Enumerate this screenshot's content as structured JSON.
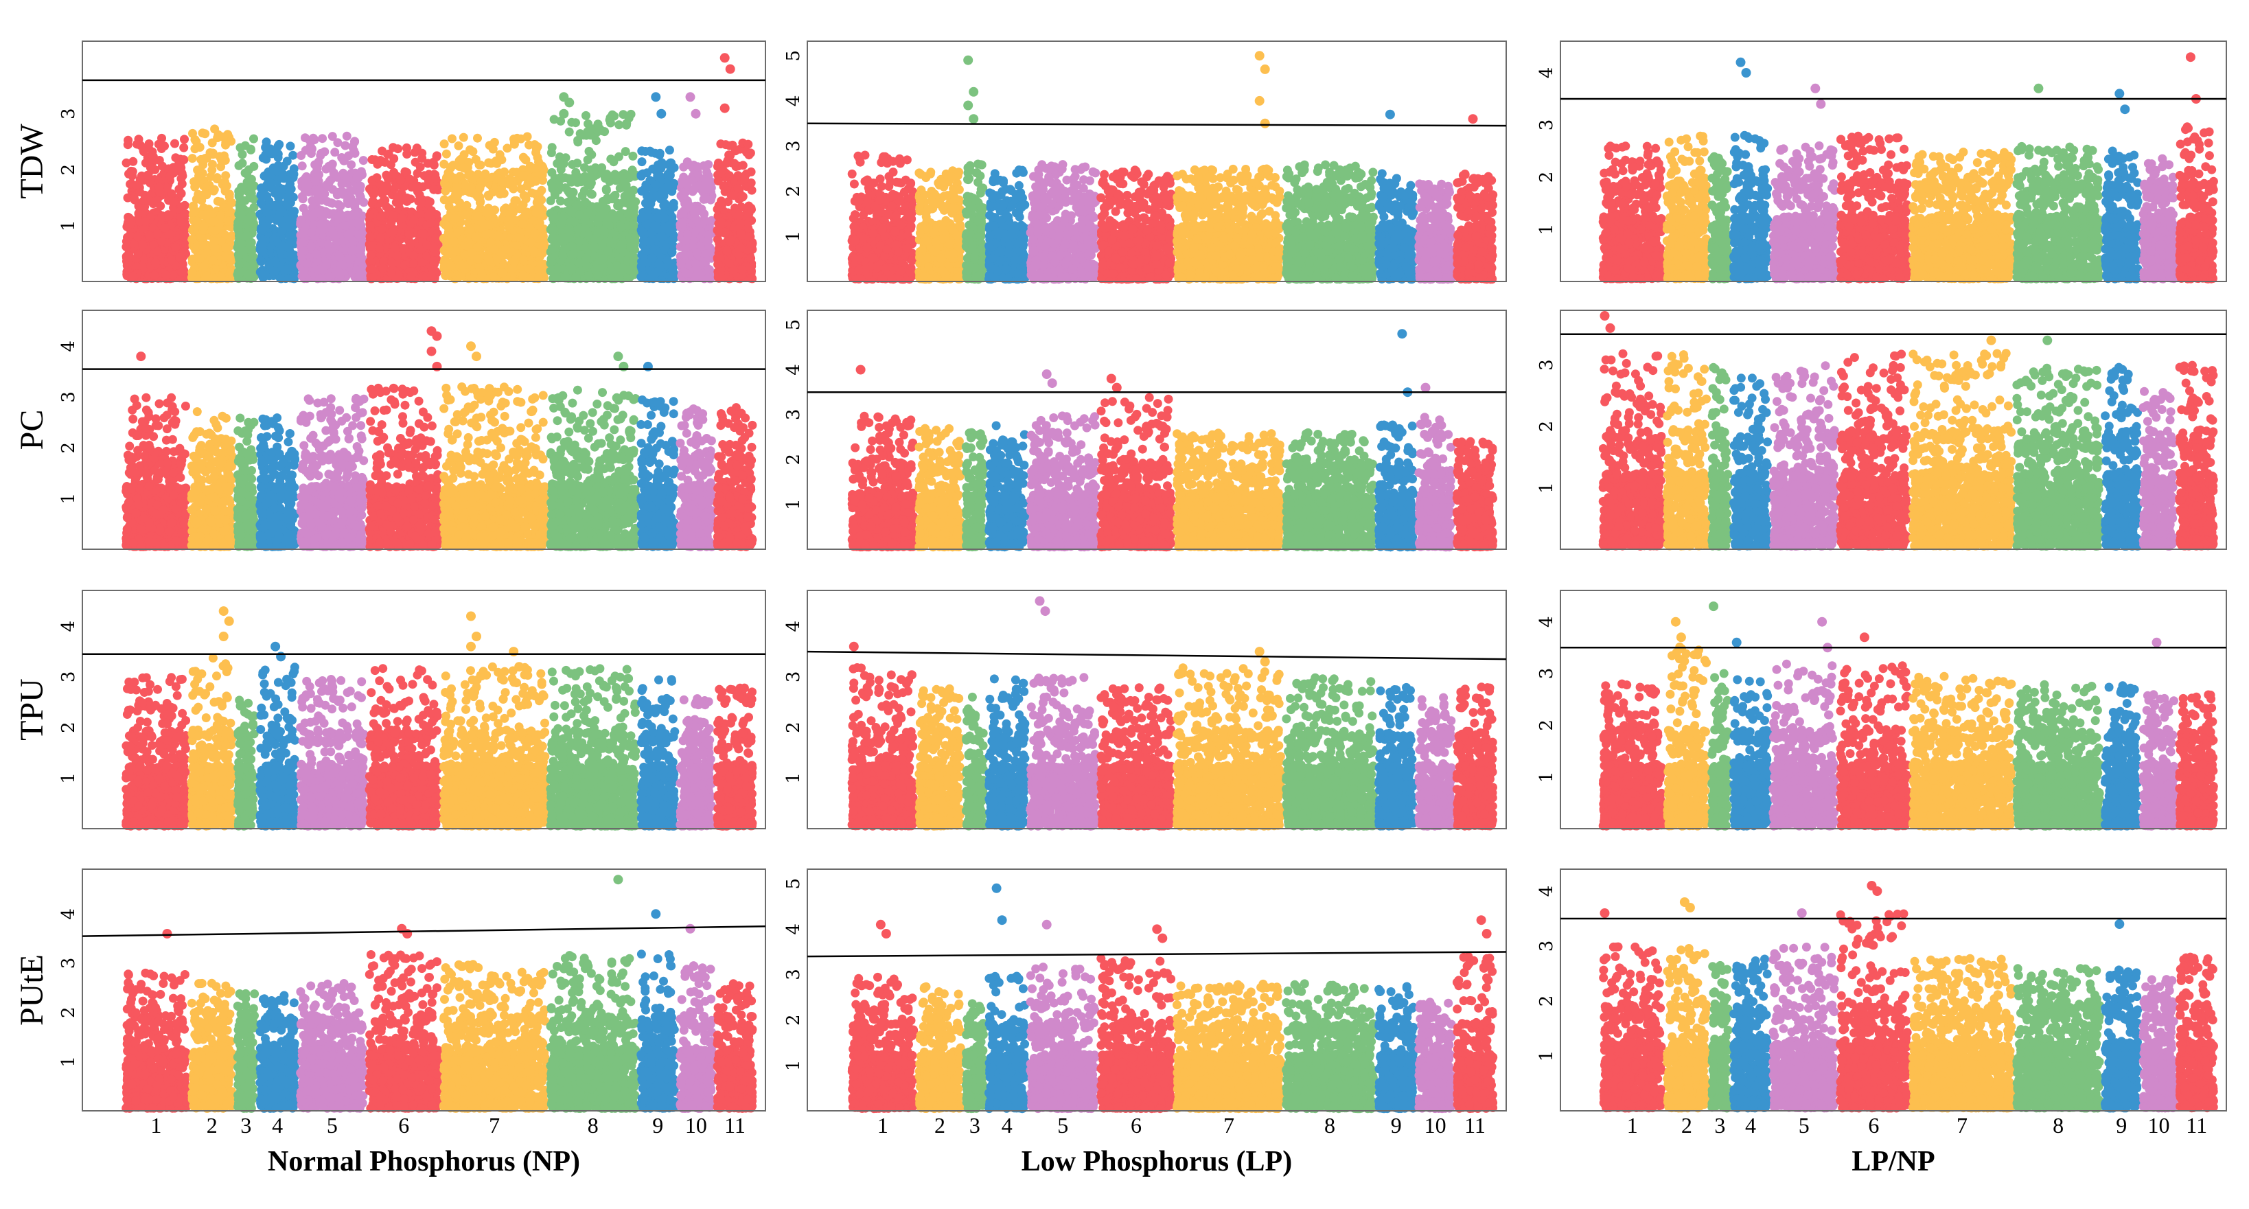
{
  "colors": {
    "chr": [
      "#f7575e",
      "#fdbf4f",
      "#7cc27f",
      "#3a94cf",
      "#d089cb",
      "#f7575e",
      "#fdbf4f",
      "#7cc27f",
      "#3a94cf",
      "#d089cb",
      "#f7575e"
    ]
  },
  "chart_data": [
    {
      "type": "scatter",
      "column": "NP",
      "trait": "TDW",
      "xlabel": "",
      "ylim": [
        0,
        4.2
      ],
      "yticks": [
        "1",
        "2",
        "3"
      ],
      "threshold": [
        3.6,
        3.6
      ],
      "chromosomes": [
        "1",
        "2",
        "3",
        "4",
        "5",
        "6",
        "7",
        "8",
        "9",
        "10",
        "11"
      ],
      "baseline_max": [
        2.6,
        2.8,
        2.6,
        2.5,
        2.6,
        2.4,
        2.6,
        3.0,
        2.4,
        2.2,
        2.5
      ],
      "peaks": [
        {
          "chr": 11,
          "pos": 0.3,
          "values": [
            4.0,
            3.8,
            3.1
          ]
        },
        {
          "chr": 8,
          "pos": 0.2,
          "values": [
            3.3,
            3.2,
            3.0
          ]
        },
        {
          "chr": 9,
          "pos": 0.5,
          "values": [
            3.3,
            3.0
          ]
        },
        {
          "chr": 10,
          "pos": 0.4,
          "values": [
            3.3,
            3.0
          ]
        }
      ]
    },
    {
      "type": "scatter",
      "column": "LP",
      "trait": "",
      "xlabel": "",
      "ylim": [
        0,
        5.2
      ],
      "yticks": [
        "1",
        "2",
        "3",
        "4",
        "5"
      ],
      "threshold": [
        3.5,
        3.45
      ],
      "chromosomes": [
        "1",
        "2",
        "3",
        "4",
        "5",
        "6",
        "7",
        "8",
        "9",
        "10",
        "11"
      ],
      "baseline_max": [
        2.8,
        2.5,
        2.6,
        2.5,
        2.6,
        2.5,
        2.5,
        2.6,
        2.4,
        2.2,
        2.4
      ],
      "peaks": [
        {
          "chr": 3,
          "pos": 0.3,
          "values": [
            4.9,
            4.2,
            3.9,
            3.6
          ]
        },
        {
          "chr": 7,
          "pos": 0.8,
          "values": [
            5.0,
            4.7,
            4.0,
            3.5
          ]
        },
        {
          "chr": 9,
          "pos": 0.4,
          "values": [
            3.7
          ]
        },
        {
          "chr": 11,
          "pos": 0.5,
          "values": [
            3.6
          ]
        }
      ]
    },
    {
      "type": "scatter",
      "column": "LP/NP",
      "trait": "",
      "xlabel": "",
      "ylim": [
        0,
        4.5
      ],
      "yticks": [
        "1",
        "2",
        "3",
        "4"
      ],
      "threshold": [
        3.5,
        3.5
      ],
      "chromosomes": [
        "1",
        "2",
        "3",
        "4",
        "5",
        "6",
        "7",
        "8",
        "9",
        "10",
        "11"
      ],
      "baseline_max": [
        2.6,
        2.8,
        2.4,
        2.8,
        2.6,
        2.8,
        2.5,
        2.6,
        2.6,
        2.4,
        3.0
      ],
      "peaks": [
        {
          "chr": 4,
          "pos": 0.3,
          "values": [
            4.2,
            4.0
          ]
        },
        {
          "chr": 11,
          "pos": 0.4,
          "values": [
            4.3,
            3.5
          ]
        },
        {
          "chr": 8,
          "pos": 0.3,
          "values": [
            3.7
          ]
        },
        {
          "chr": 9,
          "pos": 0.5,
          "values": [
            3.6,
            3.3
          ]
        },
        {
          "chr": 5,
          "pos": 0.7,
          "values": [
            3.7,
            3.4
          ]
        }
      ]
    },
    {
      "type": "scatter",
      "column": "NP",
      "trait": "PC",
      "xlabel": "",
      "ylim": [
        0,
        4.6
      ],
      "yticks": [
        "1",
        "2",
        "3",
        "4"
      ],
      "threshold": [
        3.55,
        3.55
      ],
      "chromosomes": [
        "1",
        "2",
        "3",
        "4",
        "5",
        "6",
        "7",
        "8",
        "9",
        "10",
        "11"
      ],
      "baseline_max": [
        3.0,
        2.8,
        2.6,
        2.6,
        3.0,
        3.2,
        3.2,
        3.2,
        3.0,
        2.8,
        2.8
      ],
      "peaks": [
        {
          "chr": 1,
          "pos": 0.3,
          "values": [
            3.8
          ]
        },
        {
          "chr": 6,
          "pos": 0.9,
          "values": [
            4.3,
            4.2,
            3.9,
            3.6
          ]
        },
        {
          "chr": 7,
          "pos": 0.3,
          "values": [
            4.0,
            3.8
          ]
        },
        {
          "chr": 8,
          "pos": 0.8,
          "values": [
            3.8,
            3.6
          ]
        },
        {
          "chr": 9,
          "pos": 0.3,
          "values": [
            3.6
          ]
        }
      ]
    },
    {
      "type": "scatter",
      "column": "LP",
      "trait": "",
      "xlabel": "",
      "ylim": [
        0,
        5.2
      ],
      "yticks": [
        "1",
        "2",
        "3",
        "4",
        "5"
      ],
      "threshold": [
        3.5,
        3.5
      ],
      "chromosomes": [
        "1",
        "2",
        "3",
        "4",
        "5",
        "6",
        "7",
        "8",
        "9",
        "10",
        "11"
      ],
      "baseline_max": [
        3.0,
        2.7,
        2.6,
        2.8,
        3.0,
        3.4,
        2.6,
        2.6,
        2.8,
        3.0,
        2.4
      ],
      "peaks": [
        {
          "chr": 1,
          "pos": 0.2,
          "values": [
            4.0
          ]
        },
        {
          "chr": 9,
          "pos": 0.7,
          "values": [
            4.8,
            3.5
          ]
        },
        {
          "chr": 5,
          "pos": 0.3,
          "values": [
            3.9,
            3.7
          ]
        },
        {
          "chr": 6,
          "pos": 0.2,
          "values": [
            3.8,
            3.6
          ]
        },
        {
          "chr": 10,
          "pos": 0.3,
          "values": [
            3.6
          ]
        }
      ]
    },
    {
      "type": "scatter",
      "column": "LP/NP",
      "trait": "",
      "xlabel": "",
      "ylim": [
        0,
        3.8
      ],
      "yticks": [
        "1",
        "2",
        "3"
      ],
      "threshold": [
        3.5,
        3.5
      ],
      "chromosomes": [
        "1",
        "2",
        "3",
        "4",
        "5",
        "6",
        "7",
        "8",
        "9",
        "10",
        "11"
      ],
      "baseline_max": [
        3.2,
        3.2,
        3.0,
        2.8,
        3.0,
        3.2,
        3.2,
        3.0,
        3.0,
        2.6,
        3.0
      ],
      "peaks": [
        {
          "chr": 1,
          "pos": 0.1,
          "values": [
            3.8,
            3.6
          ]
        },
        {
          "chr": 7,
          "pos": 0.8,
          "values": [
            3.4
          ]
        },
        {
          "chr": 8,
          "pos": 0.4,
          "values": [
            3.4
          ]
        }
      ]
    },
    {
      "type": "scatter",
      "column": "NP",
      "trait": "TPU",
      "xlabel": "",
      "ylim": [
        0,
        4.6
      ],
      "yticks": [
        "1",
        "2",
        "3",
        "4"
      ],
      "threshold": [
        3.45,
        3.45
      ],
      "chromosomes": [
        "1",
        "2",
        "3",
        "4",
        "5",
        "6",
        "7",
        "8",
        "9",
        "10",
        "11"
      ],
      "baseline_max": [
        3.0,
        3.4,
        2.6,
        3.2,
        3.0,
        3.2,
        3.2,
        3.2,
        3.0,
        2.6,
        2.8
      ],
      "peaks": [
        {
          "chr": 2,
          "pos": 0.8,
          "values": [
            4.3,
            4.1,
            3.8
          ]
        },
        {
          "chr": 7,
          "pos": 0.3,
          "values": [
            4.2,
            3.8,
            3.6
          ]
        },
        {
          "chr": 4,
          "pos": 0.5,
          "values": [
            3.6,
            3.4
          ]
        },
        {
          "chr": 7,
          "pos": 0.7,
          "values": [
            3.5,
            3.2
          ]
        }
      ]
    },
    {
      "type": "scatter",
      "column": "LP",
      "trait": "",
      "xlabel": "",
      "ylim": [
        0,
        4.6
      ],
      "yticks": [
        "1",
        "2",
        "3",
        "4"
      ],
      "threshold": [
        3.5,
        3.35
      ],
      "chromosomes": [
        "1",
        "2",
        "3",
        "4",
        "5",
        "6",
        "7",
        "8",
        "9",
        "10",
        "11"
      ],
      "baseline_max": [
        3.2,
        2.8,
        2.6,
        3.0,
        3.0,
        2.8,
        3.2,
        3.0,
        2.8,
        2.6,
        2.8
      ],
      "peaks": [
        {
          "chr": 5,
          "pos": 0.2,
          "values": [
            4.5,
            4.3
          ]
        },
        {
          "chr": 1,
          "pos": 0.1,
          "values": [
            3.6
          ]
        },
        {
          "chr": 7,
          "pos": 0.8,
          "values": [
            3.5,
            3.3
          ]
        }
      ]
    },
    {
      "type": "scatter",
      "column": "LP/NP",
      "trait": "",
      "xlabel": "",
      "ylim": [
        0,
        4.5
      ],
      "yticks": [
        "1",
        "2",
        "3",
        "4"
      ],
      "threshold": [
        3.5,
        3.5
      ],
      "chromosomes": [
        "1",
        "2",
        "3",
        "4",
        "5",
        "6",
        "7",
        "8",
        "9",
        "10",
        "11"
      ],
      "baseline_max": [
        2.8,
        3.6,
        3.0,
        3.0,
        3.2,
        3.2,
        3.0,
        2.8,
        2.8,
        2.6,
        2.6
      ],
      "peaks": [
        {
          "chr": 3,
          "pos": 0.3,
          "values": [
            4.3
          ]
        },
        {
          "chr": 2,
          "pos": 0.3,
          "values": [
            4.0,
            3.7
          ]
        },
        {
          "chr": 5,
          "pos": 0.8,
          "values": [
            4.0,
            3.5
          ]
        },
        {
          "chr": 6,
          "pos": 0.4,
          "values": [
            3.7
          ]
        },
        {
          "chr": 4,
          "pos": 0.2,
          "values": [
            3.6
          ]
        },
        {
          "chr": 10,
          "pos": 0.5,
          "values": [
            3.6
          ]
        }
      ]
    },
    {
      "type": "scatter",
      "column": "NP",
      "trait": "PUtE",
      "xlabel": "Normal Phosphorus (NP)",
      "ylim": [
        0,
        4.8
      ],
      "yticks": [
        "1",
        "2",
        "3",
        "4"
      ],
      "threshold": [
        3.55,
        3.75
      ],
      "chromosomes": [
        "1",
        "2",
        "3",
        "4",
        "5",
        "6",
        "7",
        "8",
        "9",
        "10",
        "11"
      ],
      "baseline_max": [
        2.8,
        2.6,
        2.4,
        2.4,
        2.6,
        3.2,
        3.0,
        3.2,
        3.2,
        3.0,
        2.6
      ],
      "peaks": [
        {
          "chr": 8,
          "pos": 0.8,
          "values": [
            4.7
          ]
        },
        {
          "chr": 9,
          "pos": 0.5,
          "values": [
            4.0
          ]
        },
        {
          "chr": 6,
          "pos": 0.5,
          "values": [
            3.7,
            3.6
          ]
        },
        {
          "chr": 1,
          "pos": 0.7,
          "values": [
            3.6
          ]
        },
        {
          "chr": 10,
          "pos": 0.4,
          "values": [
            3.7
          ]
        }
      ]
    },
    {
      "type": "scatter",
      "column": "LP",
      "trait": "",
      "xlabel": "Low Phosphorus (LP)",
      "ylim": [
        0,
        5.2
      ],
      "yticks": [
        "1",
        "2",
        "3",
        "4",
        "5"
      ],
      "threshold": [
        3.4,
        3.5
      ],
      "chromosomes": [
        "1",
        "2",
        "3",
        "4",
        "5",
        "6",
        "7",
        "8",
        "9",
        "10",
        "11"
      ],
      "baseline_max": [
        3.0,
        2.8,
        2.4,
        3.0,
        3.2,
        3.4,
        2.8,
        2.8,
        2.8,
        2.4,
        3.4
      ],
      "peaks": [
        {
          "chr": 4,
          "pos": 0.3,
          "values": [
            4.9,
            4.2
          ]
        },
        {
          "chr": 11,
          "pos": 0.7,
          "values": [
            4.2,
            3.9
          ]
        },
        {
          "chr": 1,
          "pos": 0.5,
          "values": [
            4.1,
            3.9
          ]
        },
        {
          "chr": 5,
          "pos": 0.3,
          "values": [
            4.1
          ]
        },
        {
          "chr": 6,
          "pos": 0.8,
          "values": [
            4.0,
            3.8
          ]
        }
      ]
    },
    {
      "type": "scatter",
      "column": "LP/NP",
      "trait": "",
      "xlabel": "LP/NP",
      "ylim": [
        0,
        4.3
      ],
      "yticks": [
        "1",
        "2",
        "3",
        "4"
      ],
      "threshold": [
        3.5,
        3.5
      ],
      "chromosomes": [
        "1",
        "2",
        "3",
        "4",
        "5",
        "6",
        "7",
        "8",
        "9",
        "10",
        "11"
      ],
      "baseline_max": [
        3.0,
        3.0,
        2.8,
        2.8,
        3.0,
        3.6,
        2.8,
        2.6,
        2.6,
        2.4,
        2.8
      ],
      "peaks": [
        {
          "chr": 6,
          "pos": 0.5,
          "values": [
            4.1,
            4.0
          ]
        },
        {
          "chr": 2,
          "pos": 0.5,
          "values": [
            3.8,
            3.7
          ]
        },
        {
          "chr": 1,
          "pos": 0.1,
          "values": [
            3.6
          ]
        },
        {
          "chr": 5,
          "pos": 0.5,
          "values": [
            3.6
          ]
        },
        {
          "chr": 9,
          "pos": 0.5,
          "values": [
            3.4
          ]
        }
      ]
    }
  ]
}
